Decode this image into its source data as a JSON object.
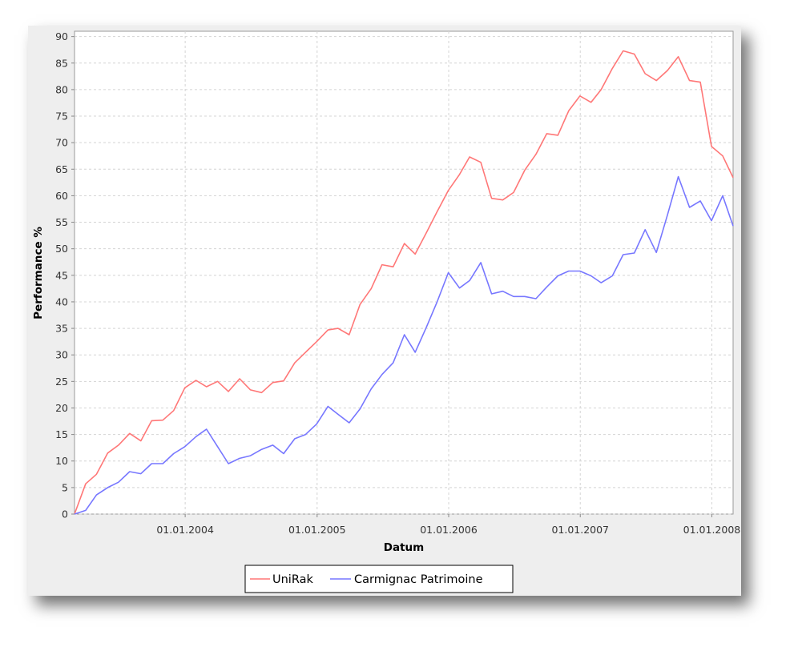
{
  "chart_data": {
    "type": "line",
    "xlabel": "Datum",
    "ylabel": "Performance %",
    "xlim": [
      "2003-02-28",
      "2008-02-29"
    ],
    "ylim": [
      0,
      91
    ],
    "y_ticks": [
      0,
      5,
      10,
      15,
      20,
      25,
      30,
      35,
      40,
      45,
      50,
      55,
      60,
      65,
      70,
      75,
      80,
      85,
      90
    ],
    "x_ticks": [
      "01.01.2004",
      "01.01.2005",
      "01.01.2006",
      "01.01.2007",
      "01.01.2008"
    ],
    "x_tick_dates": [
      "2004-01-01",
      "2005-01-01",
      "2006-01-01",
      "2007-01-01",
      "2008-01-01"
    ],
    "grid": true,
    "legend_position": "bottom",
    "x": [
      "2003-02-28",
      "2003-03-31",
      "2003-04-30",
      "2003-05-31",
      "2003-06-30",
      "2003-07-31",
      "2003-08-31",
      "2003-09-30",
      "2003-10-31",
      "2003-11-30",
      "2003-12-31",
      "2004-01-31",
      "2004-02-29",
      "2004-03-31",
      "2004-04-30",
      "2004-05-31",
      "2004-06-30",
      "2004-07-31",
      "2004-08-31",
      "2004-09-30",
      "2004-10-31",
      "2004-11-30",
      "2004-12-31",
      "2005-01-31",
      "2005-02-28",
      "2005-03-31",
      "2005-04-30",
      "2005-05-31",
      "2005-06-30",
      "2005-07-31",
      "2005-08-31",
      "2005-09-30",
      "2005-10-31",
      "2005-11-30",
      "2005-12-31",
      "2006-01-31",
      "2006-02-28",
      "2006-03-31",
      "2006-04-30",
      "2006-05-31",
      "2006-06-30",
      "2006-07-31",
      "2006-08-31",
      "2006-09-30",
      "2006-10-31",
      "2006-11-30",
      "2006-12-31",
      "2007-01-31",
      "2007-02-28",
      "2007-03-31",
      "2007-04-30",
      "2007-05-31",
      "2007-06-30",
      "2007-07-31",
      "2007-08-31",
      "2007-09-30",
      "2007-10-31",
      "2007-11-30",
      "2007-12-31",
      "2008-01-31",
      "2008-02-29"
    ],
    "series": [
      {
        "name": "UniRak",
        "color": "#ff7777",
        "values": [
          0,
          5.7,
          7.5,
          11.5,
          13,
          15.2,
          13.8,
          17.6,
          17.7,
          19.5,
          23.8,
          25.2,
          24,
          25,
          23.1,
          25.5,
          23.4,
          22.9,
          24.8,
          25.1,
          28.5,
          30.5,
          32.5,
          34.7,
          35,
          33.8,
          39.5,
          42.5,
          47,
          46.6,
          51,
          49,
          53,
          57,
          61,
          64,
          67.3,
          66.3,
          59.5,
          59.2,
          60.6,
          64.8,
          67.8,
          71.7,
          71.4,
          76,
          78.8,
          77.6,
          80,
          84,
          87.3,
          86.7,
          83,
          81.7,
          83.6,
          86.2,
          81.7,
          81.4,
          69.3,
          67.5,
          63.4
        ]
      },
      {
        "name": "Carmignac Patrimoine",
        "color": "#7777ff",
        "values": [
          0,
          0.7,
          3.6,
          5,
          6,
          8,
          7.6,
          9.5,
          9.5,
          11.4,
          12.7,
          14.6,
          16,
          12.7,
          9.5,
          10.5,
          11,
          12.2,
          13,
          11.4,
          14.2,
          15,
          17,
          20.3,
          18.8,
          17.2,
          19.8,
          23.6,
          26.3,
          28.5,
          33.8,
          30.5,
          35.2,
          40,
          45.5,
          42.6,
          44,
          47.4,
          41.5,
          42,
          41,
          41,
          40.6,
          42.8,
          44.9,
          45.8,
          45.8,
          44.9,
          43.6,
          44.9,
          48.9,
          49.2,
          53.6,
          49.3,
          56.4,
          63.6,
          57.8,
          59,
          55.3,
          60,
          54.3
        ]
      }
    ]
  }
}
